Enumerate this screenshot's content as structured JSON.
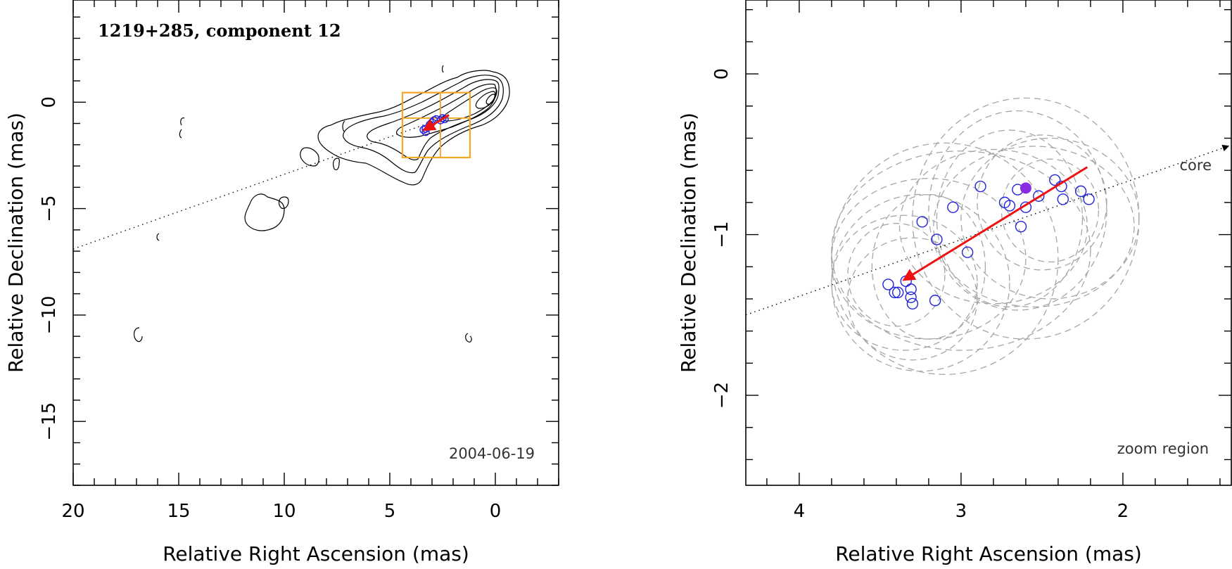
{
  "colors": {
    "points": "#2222dd",
    "arrow": "#ee1111",
    "zoom_box": "#f5a623",
    "ellipses": "#a6a6a6",
    "filled_point": "#8a2be2"
  },
  "chart_data": [
    {
      "type": "scatter",
      "panel": "left",
      "title": "1219+285, component 12",
      "date_label": "2004-06-19",
      "xlabel": "Relative Right Ascension (mas)",
      "ylabel": "Relative Declination (mas)",
      "xlim": [
        20,
        -3
      ],
      "ylim": [
        -18,
        4.8
      ],
      "xticks": [
        20,
        15,
        10,
        5,
        0
      ],
      "yticks": [
        0,
        -5,
        -10,
        -15
      ],
      "contours": "radio intensity contour map (VLBI jet)",
      "zoom_box": {
        "x": [
          4.4,
          1.2
        ],
        "y": [
          -2.6,
          0.45
        ],
        "cross": [
          2.6,
          -0.75
        ]
      },
      "ridge_line": {
        "from": [
          20,
          -6.9
        ],
        "to": [
          2.2,
          -0.65
        ]
      },
      "points": [
        [
          3.4,
          -1.3
        ],
        [
          3.3,
          -1.25
        ],
        [
          3.1,
          -1.05
        ],
        [
          3.0,
          -0.95
        ],
        [
          2.9,
          -0.85
        ],
        [
          2.8,
          -0.8
        ],
        [
          2.6,
          -0.85
        ],
        [
          2.5,
          -0.75
        ],
        [
          2.4,
          -0.8
        ],
        [
          3.3,
          -1.4
        ]
      ],
      "arrow": {
        "from": [
          2.2,
          -0.6
        ],
        "to": [
          3.35,
          -1.3
        ]
      }
    },
    {
      "type": "scatter",
      "panel": "right",
      "xlabel": "Relative Right Ascension (mas)",
      "ylabel": "Relative Declination (mas)",
      "xlim": [
        4.33,
        1.33
      ],
      "ylim": [
        -2.56,
        0.46
      ],
      "xticks": [
        4,
        3,
        2
      ],
      "yticks": [
        0,
        -1,
        -2
      ],
      "annotation_core": "core",
      "annotation_zoom": "zoom region",
      "core_line": {
        "from": [
          4.33,
          -1.5
        ],
        "to": [
          1.35,
          -0.45
        ]
      },
      "points": [
        [
          3.45,
          -1.31
        ],
        [
          3.41,
          -1.36
        ],
        [
          3.39,
          -1.36
        ],
        [
          3.34,
          -1.29
        ],
        [
          3.31,
          -1.34
        ],
        [
          3.31,
          -1.39
        ],
        [
          3.3,
          -1.43
        ],
        [
          3.16,
          -1.41
        ],
        [
          3.24,
          -0.92
        ],
        [
          3.15,
          -1.03
        ],
        [
          3.05,
          -0.83
        ],
        [
          2.96,
          -1.11
        ],
        [
          2.88,
          -0.7
        ],
        [
          2.73,
          -0.8
        ],
        [
          2.7,
          -0.82
        ],
        [
          2.65,
          -0.72
        ],
        [
          2.63,
          -0.95
        ],
        [
          2.6,
          -0.83
        ],
        [
          2.52,
          -0.76
        ],
        [
          2.42,
          -0.66
        ],
        [
          2.38,
          -0.7
        ],
        [
          2.37,
          -0.78
        ],
        [
          2.26,
          -0.73
        ],
        [
          2.21,
          -0.78
        ]
      ],
      "filled_point": [
        2.6,
        -0.71
      ],
      "arrow": {
        "from": [
          2.22,
          -0.58
        ],
        "to": [
          3.35,
          -1.28
        ]
      },
      "ellipses": [
        {
          "cx": 2.6,
          "cy": -0.9,
          "rx": 0.7,
          "ry": 0.75
        },
        {
          "cx": 2.65,
          "cy": -0.85,
          "rx": 0.55,
          "ry": 0.62
        },
        {
          "cx": 2.55,
          "cy": -0.95,
          "rx": 0.62,
          "ry": 0.5
        },
        {
          "cx": 2.7,
          "cy": -0.9,
          "rx": 0.45,
          "ry": 0.55
        },
        {
          "cx": 2.5,
          "cy": -0.8,
          "rx": 0.4,
          "ry": 0.42
        },
        {
          "cx": 2.45,
          "cy": -0.85,
          "rx": 0.3,
          "ry": 0.32
        },
        {
          "cx": 2.8,
          "cy": -0.95,
          "rx": 0.58,
          "ry": 0.48
        },
        {
          "cx": 2.45,
          "cy": -0.9,
          "rx": 0.55,
          "ry": 0.5
        },
        {
          "cx": 3.1,
          "cy": -1.15,
          "rx": 0.7,
          "ry": 0.72
        },
        {
          "cx": 3.25,
          "cy": -1.3,
          "rx": 0.55,
          "ry": 0.55
        },
        {
          "cx": 3.35,
          "cy": -1.3,
          "rx": 0.45,
          "ry": 0.42
        },
        {
          "cx": 3.3,
          "cy": -1.4,
          "rx": 0.4,
          "ry": 0.38
        },
        {
          "cx": 3.2,
          "cy": -1.2,
          "rx": 0.35,
          "ry": 0.45
        },
        {
          "cx": 3.4,
          "cy": -1.25,
          "rx": 0.3,
          "ry": 0.32
        },
        {
          "cx": 3.0,
          "cy": -1.1,
          "rx": 0.8,
          "ry": 0.62
        },
        {
          "cx": 3.2,
          "cy": -1.15,
          "rx": 0.6,
          "ry": 0.5
        }
      ]
    }
  ]
}
